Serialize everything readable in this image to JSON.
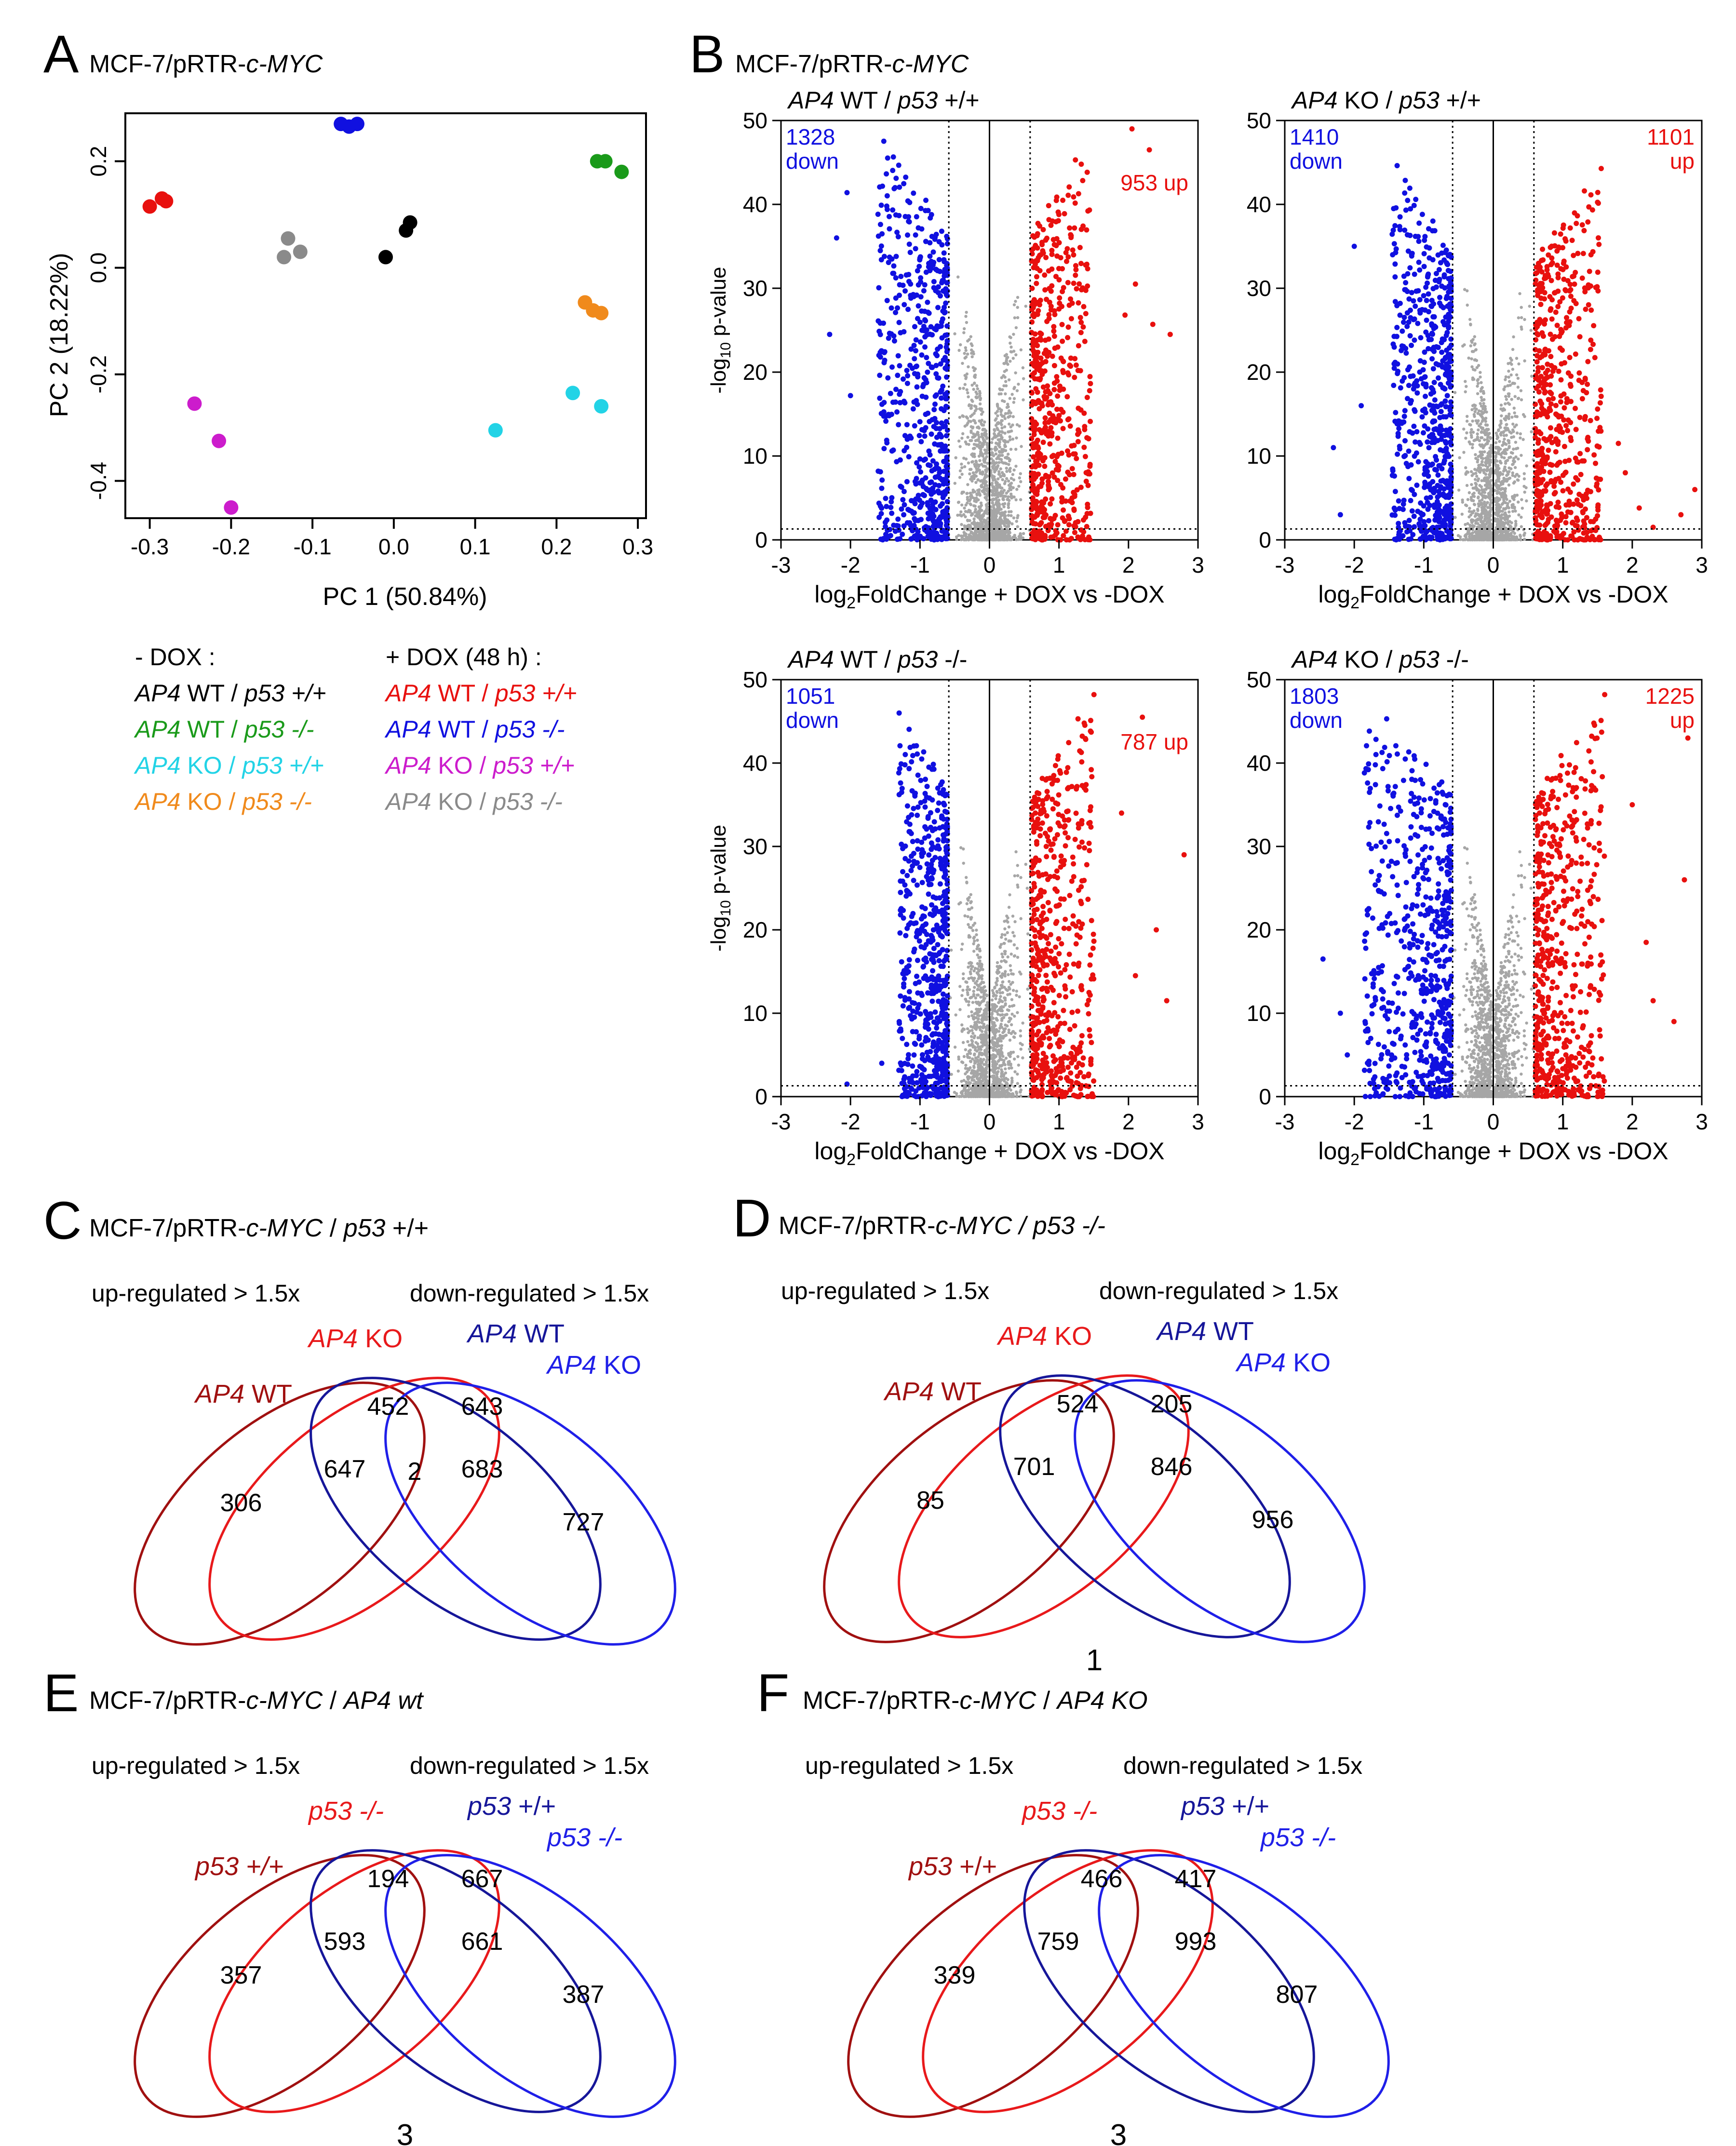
{
  "colors": {
    "black": "#000000",
    "green": "#1a9a1a",
    "cyan": "#22d3e6",
    "orange": "#f08a1c",
    "red": "#e8100e",
    "blue": "#1010e0",
    "magenta": "#cc1ccc",
    "gray": "#8a8a8a",
    "darkred": "#a01010",
    "venn_red": "#e8191b",
    "venn_navy": "#161699",
    "venn_blue": "#1f1fe8",
    "volcano_gray": "#a6a6a6"
  },
  "panelA": {
    "letter": "A",
    "title_plain": "MCF-7/pRTR-",
    "title_italic": "c-MYC",
    "legend": {
      "minus_header": "- DOX :",
      "plus_header": "+ DOX (48 h) :",
      "minus_items": [
        {
          "gene": "AP4",
          "status": "WT",
          "p53": "p53",
          "geno": "+/+",
          "color_key": "black"
        },
        {
          "gene": "AP4",
          "status": "WT",
          "p53": "p53",
          "geno": "-/-",
          "color_key": "green"
        },
        {
          "gene": "AP4",
          "status": "KO",
          "p53": "p53",
          "geno": "+/+",
          "color_key": "cyan"
        },
        {
          "gene": "AP4",
          "status": "KO",
          "p53": "p53",
          "geno": "-/-",
          "color_key": "orange"
        }
      ],
      "plus_items": [
        {
          "gene": "AP4",
          "status": "WT",
          "p53": "p53",
          "geno": "+/+",
          "color_key": "red"
        },
        {
          "gene": "AP4",
          "status": "WT",
          "p53": "p53",
          "geno": "-/-",
          "color_key": "blue"
        },
        {
          "gene": "AP4",
          "status": "KO",
          "p53": "p53",
          "geno": "+/+",
          "color_key": "magenta"
        },
        {
          "gene": "AP4",
          "status": "KO",
          "p53": "p53",
          "geno": "-/-",
          "color_key": "gray"
        }
      ]
    }
  },
  "chart_data": [
    {
      "type": "scatter",
      "id": "pca",
      "xlabel": "PC 1 (50.84%)",
      "ylabel": "PC 2 (18.22%)",
      "xlim": [
        -0.33,
        0.31
      ],
      "ylim": [
        -0.47,
        0.29
      ],
      "xticks": [
        -0.3,
        -0.2,
        -0.1,
        0.0,
        0.1,
        0.2,
        0.3
      ],
      "xtick_labels": [
        "-0.3",
        "-0.2",
        "-0.1",
        "0.0",
        "0.1",
        "0.2",
        "0.3"
      ],
      "yticks": [
        -0.4,
        -0.2,
        0.0,
        0.2
      ],
      "ytick_labels": [
        "-0.4",
        "-0.2",
        "0.0",
        "0.2"
      ],
      "series": [
        {
          "name": "- DOX AP4 WT / p53 +/+",
          "color_key": "black",
          "points": [
            [
              -0.01,
              0.02
            ],
            [
              0.015,
              0.07
            ],
            [
              0.02,
              0.085
            ]
          ]
        },
        {
          "name": "- DOX AP4 WT / p53 -/-",
          "color_key": "green",
          "points": [
            [
              0.25,
              0.2
            ],
            [
              0.26,
              0.2
            ],
            [
              0.28,
              0.18
            ]
          ]
        },
        {
          "name": "- DOX AP4 KO / p53 +/+",
          "color_key": "cyan",
          "points": [
            [
              0.125,
              -0.305
            ],
            [
              0.22,
              -0.235
            ],
            [
              0.255,
              -0.26
            ]
          ]
        },
        {
          "name": "- DOX AP4 KO / p53 -/-",
          "color_key": "orange",
          "points": [
            [
              0.235,
              -0.065
            ],
            [
              0.245,
              -0.08
            ],
            [
              0.255,
              -0.085
            ]
          ]
        },
        {
          "name": "+ DOX AP4 WT / p53 +/+",
          "color_key": "red",
          "points": [
            [
              -0.3,
              0.115
            ],
            [
              -0.285,
              0.13
            ],
            [
              -0.28,
              0.125
            ]
          ]
        },
        {
          "name": "+ DOX AP4 WT / p53 -/-",
          "color_key": "blue",
          "points": [
            [
              -0.065,
              0.27
            ],
            [
              -0.055,
              0.265
            ],
            [
              -0.045,
              0.27
            ]
          ]
        },
        {
          "name": "+ DOX AP4 KO / p53 +/+",
          "color_key": "magenta",
          "points": [
            [
              -0.245,
              -0.255
            ],
            [
              -0.215,
              -0.325
            ],
            [
              -0.2,
              -0.45
            ]
          ]
        },
        {
          "name": "+ DOX AP4 KO / p53 -/-",
          "color_key": "gray",
          "points": [
            [
              -0.13,
              0.055
            ],
            [
              -0.115,
              0.03
            ],
            [
              -0.135,
              0.02
            ]
          ]
        }
      ]
    },
    {
      "type": "scatter",
      "id": "volcano-wt-p53wt",
      "title_parts": [
        [
          "AP4",
          true
        ],
        [
          " WT / ",
          false
        ],
        [
          "p53",
          true
        ],
        [
          " +/+",
          false
        ]
      ],
      "xlabel": "log2FoldChange + DOX vs -DOX",
      "ylabel": "-log10 p-value",
      "xlim": [
        -3,
        3
      ],
      "ylim": [
        0,
        50
      ],
      "fc_threshold": 0.585,
      "p_threshold": 1.3,
      "down_count": "1328",
      "down_word": "down",
      "up_count": "953",
      "up_word": "up",
      "up_layout": "inline",
      "down_spread": 1.0,
      "up_spread": 0.85,
      "down_top": 49,
      "up_top": 49,
      "show_ylabel": true,
      "highlight_up": [
        [
          2.05,
          49
        ],
        [
          2.3,
          46.5
        ],
        [
          2.6,
          24.5
        ],
        [
          2.35,
          25.7
        ],
        [
          2.1,
          30.5
        ],
        [
          1.95,
          26.8
        ]
      ],
      "highlight_down": [
        [
          -2.3,
          24.5
        ],
        [
          -2.2,
          36
        ],
        [
          -2.05,
          41.4
        ],
        [
          -1.6,
          26.1
        ],
        [
          -2.0,
          17.2
        ]
      ]
    },
    {
      "type": "scatter",
      "id": "volcano-ko-p53wt",
      "title_parts": [
        [
          "AP4",
          true
        ],
        [
          " KO / ",
          false
        ],
        [
          "p53",
          true
        ],
        [
          " +/+",
          false
        ]
      ],
      "xlabel": "log2FoldChange + DOX vs -DOX",
      "ylabel": "-log10 p-value",
      "xlim": [
        -3,
        3
      ],
      "ylim": [
        0,
        50
      ],
      "fc_threshold": 0.585,
      "p_threshold": 1.3,
      "down_count": "1410",
      "down_word": "down",
      "up_count": "1101",
      "up_word": "up",
      "up_layout": "stacked",
      "down_spread": 0.85,
      "up_spread": 0.95,
      "down_top": 46,
      "up_top": 45,
      "show_ylabel": false,
      "highlight_up": [
        [
          2.9,
          6
        ],
        [
          2.7,
          3
        ],
        [
          2.3,
          1.5
        ],
        [
          2.1,
          3.8
        ],
        [
          1.9,
          8
        ],
        [
          1.8,
          11.5
        ]
      ],
      "highlight_down": [
        [
          -2.0,
          35
        ],
        [
          -2.2,
          3
        ],
        [
          -2.3,
          11
        ],
        [
          -1.9,
          16
        ]
      ]
    },
    {
      "type": "scatter",
      "id": "volcano-wt-p53ko",
      "title_parts": [
        [
          "AP4",
          true
        ],
        [
          " WT / ",
          false
        ],
        [
          "p53",
          true
        ],
        [
          " -/-",
          false
        ]
      ],
      "xlabel": "log2FoldChange + DOX vs -DOX",
      "ylabel": "-log10 p-value",
      "xlim": [
        -3,
        3
      ],
      "ylim": [
        0,
        50
      ],
      "fc_threshold": 0.585,
      "p_threshold": 1.3,
      "down_count": "1051",
      "down_word": "down",
      "up_count": "787",
      "up_word": "up",
      "up_layout": "inline",
      "down_spread": 0.7,
      "up_spread": 0.9,
      "down_top": 49,
      "up_top": 49,
      "show_ylabel": true,
      "highlight_up": [
        [
          2.8,
          29
        ],
        [
          2.2,
          45.5
        ],
        [
          2.4,
          20
        ],
        [
          2.55,
          11.5
        ],
        [
          2.1,
          14.5
        ],
        [
          1.9,
          34
        ]
      ],
      "highlight_down": [
        [
          -2.05,
          1.5
        ],
        [
          -1.3,
          46
        ],
        [
          -1.55,
          4
        ]
      ]
    },
    {
      "type": "scatter",
      "id": "volcano-ko-p53ko",
      "title_parts": [
        [
          "AP4",
          true
        ],
        [
          " KO / ",
          false
        ],
        [
          "p53",
          true
        ],
        [
          " -/-",
          false
        ]
      ],
      "xlabel": "log2FoldChange + DOX vs -DOX",
      "ylabel": "-log10 p-value",
      "xlim": [
        -3,
        3
      ],
      "ylim": [
        0,
        50
      ],
      "fc_threshold": 0.585,
      "p_threshold": 1.3,
      "down_count": "1803",
      "down_word": "down",
      "up_count": "1225",
      "up_word": "up",
      "up_layout": "stacked",
      "down_spread": 1.25,
      "up_spread": 1.0,
      "down_top": 49,
      "up_top": 49,
      "show_ylabel": false,
      "highlight_up": [
        [
          2.8,
          43
        ],
        [
          2.75,
          26
        ],
        [
          2.2,
          18.5
        ],
        [
          2.0,
          35
        ],
        [
          2.3,
          11.5
        ],
        [
          2.6,
          9
        ]
      ],
      "highlight_down": [
        [
          -2.45,
          16.5
        ],
        [
          -2.2,
          10
        ],
        [
          -2.1,
          5
        ]
      ]
    }
  ],
  "labels": {
    "panelB_letter": "B",
    "panelB_title_plain": "MCF-7/pRTR-",
    "panelB_title_italic": "c-MYC",
    "ylabel_prefix": "-log",
    "ylabel_sub": "10",
    "ylabel_suffix": " p-value",
    "xlabel_prefix": "log",
    "xlabel_sub": "2",
    "xlabel_suffix": "FoldChange + DOX vs -DOX",
    "y_ticks": [
      "0",
      "10",
      "20",
      "30",
      "40",
      "50"
    ],
    "x_ticks": [
      "-3",
      "-2",
      "-1",
      "0",
      "1",
      "2",
      "3"
    ]
  },
  "venns": [
    {
      "id": "venn-C",
      "letter": "C",
      "title_parts": [
        [
          "MCF-7/pRTR-",
          false
        ],
        [
          "c-MYC",
          true
        ],
        [
          " / ",
          false
        ],
        [
          "p53",
          true
        ],
        [
          " +/+",
          false
        ]
      ],
      "up_label": "up-regulated > 1.5x",
      "down_label": "down-regulated > 1.5x",
      "set_labels": [
        {
          "italic": "AP4",
          "rest": " WT",
          "color_key": "darkred",
          "italic_rest": false
        },
        {
          "italic": "AP4",
          "rest": " KO",
          "color_key": "venn_red",
          "italic_rest": false
        },
        {
          "italic": "AP4",
          "rest": " WT",
          "color_key": "venn_navy",
          "italic_rest": false
        },
        {
          "italic": "AP4",
          "rest": " KO",
          "color_key": "venn_blue",
          "italic_rest": false
        }
      ],
      "numbers": [
        "306",
        "452",
        "647",
        "2",
        "643",
        "683",
        "727"
      ],
      "bottom": ""
    },
    {
      "id": "venn-D",
      "letter": "D",
      "title_parts": [
        [
          "MCF-7/pRTR-",
          false
        ],
        [
          "c-MYC",
          true
        ],
        [
          " / ",
          true
        ],
        [
          "p53",
          true
        ],
        [
          " -/-",
          true
        ]
      ],
      "up_label": "up-regulated > 1.5x",
      "down_label": "down-regulated > 1.5x",
      "set_labels": [
        {
          "italic": "AP4",
          "rest": " WT",
          "color_key": "darkred",
          "italic_rest": false
        },
        {
          "italic": "AP4",
          "rest": " KO",
          "color_key": "venn_red",
          "italic_rest": false
        },
        {
          "italic": "AP4",
          "rest": " WT",
          "color_key": "venn_navy",
          "italic_rest": false
        },
        {
          "italic": "AP4",
          "rest": " KO",
          "color_key": "venn_blue",
          "italic_rest": false
        }
      ],
      "numbers": [
        "85",
        "524",
        "701",
        "",
        "205",
        "846",
        "956"
      ],
      "bottom": "1"
    },
    {
      "id": "venn-E",
      "letter": "E",
      "title_parts": [
        [
          "MCF-7/pRTR-",
          false
        ],
        [
          "c-MYC",
          true
        ],
        [
          " / ",
          false
        ],
        [
          "AP4 wt",
          true
        ]
      ],
      "up_label": "up-regulated > 1.5x",
      "down_label": "down-regulated > 1.5x",
      "set_labels": [
        {
          "italic": "p53",
          "rest": " +/+",
          "color_key": "darkred",
          "italic_rest": true
        },
        {
          "italic": "p53",
          "rest": " -/-",
          "color_key": "venn_red",
          "italic_rest": true
        },
        {
          "italic": "p53",
          "rest": " +/+",
          "color_key": "venn_navy",
          "italic_rest": false
        },
        {
          "italic": "p53",
          "rest": " -/-",
          "color_key": "venn_blue",
          "italic_rest": true
        }
      ],
      "numbers": [
        "357",
        "194",
        "593",
        "",
        "667",
        "661",
        "387"
      ],
      "bottom": "3"
    },
    {
      "id": "venn-F",
      "letter": "F",
      "title_parts": [
        [
          "MCF-7/pRTR-",
          false
        ],
        [
          "c-MYC",
          true
        ],
        [
          " / ",
          false
        ],
        [
          "AP4 KO",
          true
        ]
      ],
      "up_label": "up-regulated > 1.5x",
      "down_label": "down-regulated > 1.5x",
      "set_labels": [
        {
          "italic": "p53",
          "rest": " +/+",
          "color_key": "darkred",
          "italic_rest": false
        },
        {
          "italic": "p53",
          "rest": " -/-",
          "color_key": "venn_red",
          "italic_rest": true
        },
        {
          "italic": "p53",
          "rest": " +/+",
          "color_key": "venn_navy",
          "italic_rest": false
        },
        {
          "italic": "p53",
          "rest": " -/-",
          "color_key": "venn_blue",
          "italic_rest": true
        }
      ],
      "numbers": [
        "339",
        "466",
        "759",
        "",
        "417",
        "993",
        "807"
      ],
      "bottom": "3"
    }
  ]
}
